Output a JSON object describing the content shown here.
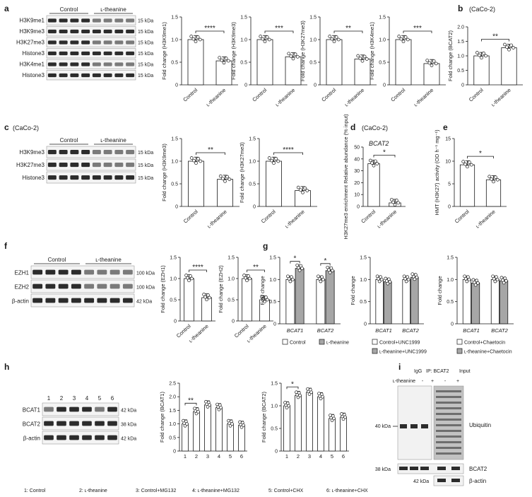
{
  "panel_labels": [
    "a",
    "b",
    "c",
    "d",
    "e",
    "f",
    "g",
    "h",
    "i"
  ],
  "a": {
    "blot": {
      "group_labels": [
        "Control",
        "ʟ-theanine"
      ],
      "rows": [
        "H3K9me1",
        "H3K9me3",
        "H3K27me3",
        "Histone3",
        "H3K4me1",
        "Histone3"
      ],
      "kda": [
        "15 kDa",
        "15 kDa",
        "15 kDa",
        "15 kDa",
        "15 kDa",
        "15 kDa"
      ]
    }
  },
  "b": {
    "cell": "(CaCo-2)"
  },
  "c": {
    "cell": "(CaCo-2)",
    "blot": {
      "group_labels": [
        "Control",
        "ʟ-theanine"
      ],
      "rows": [
        "H3K9me3",
        "H3K27me3",
        "Histone3"
      ],
      "kda": [
        "15 kDa",
        "15 kDa",
        "15 kDa"
      ]
    }
  },
  "d": {
    "cell": "(CaCo-2)"
  },
  "f": {
    "blot": {
      "group_labels": [
        "Control",
        "ʟ-theanine"
      ],
      "rows": [
        "EZH1",
        "EZH2",
        "β-actin"
      ],
      "kda": [
        "100 kDa",
        "100 kDa",
        "42 kDa"
      ]
    }
  },
  "h": {
    "blot": {
      "lane_numbers": [
        "1",
        "2",
        "3",
        "4",
        "5",
        "6"
      ],
      "rows": [
        "BCAT1",
        "BCAT2",
        "β-actin"
      ],
      "kda": [
        "42 kDa",
        "38 kDa",
        "42 kDa"
      ]
    },
    "footnote": [
      "1: Control",
      "2: ʟ-theanine",
      "3: Control+MG132",
      "4: ʟ-theanine+MG132",
      "5: Control+CHX",
      "6: ʟ-theanine+CHX"
    ]
  },
  "i": {
    "header_left": "IgG",
    "header_ip": "IP: BCAT2",
    "header_input": "Input",
    "row_label": "ʟ-theanine",
    "signs": [
      "-",
      "+",
      "-",
      "+"
    ],
    "kda_40": "40 kDa",
    "kda_38": "38 kDa",
    "kda_42": "42 kDa",
    "labels": [
      "Ubiquitin",
      "BCAT2",
      "β-actin"
    ]
  },
  "g_legends": [
    [
      {
        "label": "Control",
        "color": "#ffffff"
      },
      {
        "label": "ʟ-theanine",
        "color": "#a6a6a6"
      }
    ],
    [
      {
        "label": "Control+UNC1999",
        "color": "#ffffff"
      },
      {
        "label": "ʟ-theanine+UNC1999",
        "color": "#a6a6a6"
      }
    ],
    [
      {
        "label": "Control+Chaetocin",
        "color": "#ffffff"
      },
      {
        "label": "ʟ-theanine+Chaetocin",
        "color": "#a6a6a6"
      }
    ]
  ],
  "colors": {
    "bar_light": "#ffffff",
    "bar_dark": "#a6a6a6",
    "ink": "#1a1a1a",
    "band": "#2c2c2c"
  },
  "chart_data": [
    {
      "id": "a1",
      "type": "bar",
      "categories": [
        "Control",
        "ʟ-theanine"
      ],
      "values": [
        1.0,
        0.53
      ],
      "ylabel": "Fold change (H3K9me1)",
      "ylim": [
        0,
        1.5
      ],
      "yticks": [
        "0",
        "0.5",
        "1.0",
        "1.5"
      ],
      "sig": [
        "****"
      ]
    },
    {
      "id": "a2",
      "type": "bar",
      "categories": [
        "Control",
        "ʟ-theanine"
      ],
      "values": [
        1.0,
        0.62
      ],
      "ylabel": "Fold change (H3K9me3)",
      "ylim": [
        0,
        1.5
      ],
      "yticks": [
        "0",
        "0.5",
        "1.0",
        "1.5"
      ],
      "sig": [
        "***"
      ]
    },
    {
      "id": "a3",
      "type": "bar",
      "categories": [
        "Control",
        "ʟ-theanine"
      ],
      "values": [
        1.0,
        0.57
      ],
      "ylabel": "Fold change (H3K27me3)",
      "ylim": [
        0,
        1.5
      ],
      "yticks": [
        "0",
        "0.5",
        "1.0",
        "1.5"
      ],
      "sig": [
        "**"
      ]
    },
    {
      "id": "a4",
      "type": "bar",
      "categories": [
        "Control",
        "ʟ-theanine"
      ],
      "values": [
        1.0,
        0.47
      ],
      "ylabel": "Fold change (H3K4me1)",
      "ylim": [
        0,
        1.5
      ],
      "yticks": [
        "0",
        "0.5",
        "1.0",
        "1.5"
      ],
      "sig": [
        "***"
      ]
    },
    {
      "id": "b",
      "type": "bar",
      "categories": [
        "Control",
        "ʟ-theanine"
      ],
      "values": [
        1.0,
        1.28
      ],
      "ylabel": "Fold change (BCAT2)",
      "ylim": [
        0,
        2.0
      ],
      "yticks": [
        "0",
        "0.5",
        "1.0",
        "1.5",
        "2.0"
      ],
      "sig": [
        "**"
      ]
    },
    {
      "id": "c1",
      "type": "bar",
      "categories": [
        "Control",
        "ʟ-theanine"
      ],
      "values": [
        1.0,
        0.6
      ],
      "ylabel": "Fold change (H3K9me3)",
      "ylim": [
        0,
        1.5
      ],
      "yticks": [
        "0",
        "0.5",
        "1.0",
        "1.5"
      ],
      "sig": [
        "**"
      ]
    },
    {
      "id": "c2",
      "type": "bar",
      "categories": [
        "Control",
        "ʟ-theanine"
      ],
      "values": [
        1.0,
        0.35
      ],
      "ylabel": "Fold change (H3K27me3)",
      "ylim": [
        0,
        1.5
      ],
      "yticks": [
        "0",
        "0.5",
        "1.0",
        "1.5"
      ],
      "sig": [
        "****"
      ]
    },
    {
      "id": "d",
      "type": "bar",
      "title": "BCAT2",
      "categories": [
        "Control",
        "ʟ-theanine"
      ],
      "values": [
        36,
        3
      ],
      "ylabel": "H3K27me3 enrichment Relative abundance (% input)",
      "ylim": [
        0,
        50
      ],
      "yticks": [
        "0",
        "10",
        "20",
        "30",
        "40",
        "50"
      ],
      "sig": [
        "*"
      ]
    },
    {
      "id": "e",
      "type": "bar",
      "categories": [
        "Control",
        "ʟ-theanine"
      ],
      "values": [
        9.2,
        5.9
      ],
      "ylabel": "HMT (H3K27) activity (OD h⁻¹ mg⁻¹)",
      "ylim": [
        0,
        15
      ],
      "yticks": [
        "0",
        "5",
        "10",
        "15"
      ],
      "sig": [
        "*"
      ]
    },
    {
      "id": "f1",
      "type": "bar",
      "categories": [
        "Control",
        "ʟ-theanine"
      ],
      "values": [
        1.0,
        0.55
      ],
      "ylabel": "Fold change (EZH1)",
      "ylim": [
        0,
        1.5
      ],
      "yticks": [
        "0",
        "0.5",
        "1.0",
        "1.5"
      ],
      "sig": [
        "****"
      ]
    },
    {
      "id": "f2",
      "type": "bar",
      "categories": [
        "Control",
        "ʟ-theanine"
      ],
      "values": [
        1.0,
        0.5
      ],
      "ylabel": "Fold change (EZH2)",
      "ylim": [
        0,
        1.5
      ],
      "yticks": [
        "0",
        "0.5",
        "1.0",
        "1.5"
      ],
      "sig": [
        "**"
      ]
    },
    {
      "id": "g1",
      "type": "bar",
      "categories": [
        "BCAT1",
        "BCAT2"
      ],
      "series": [
        {
          "values": [
            1.0,
            1.0
          ]
        },
        {
          "values": [
            1.25,
            1.2
          ]
        }
      ],
      "ylabel": "Fold change",
      "ylim": [
        0,
        1.5
      ],
      "yticks": [
        "0",
        "0.5",
        "1.0",
        "1.5"
      ],
      "sig": [
        "*",
        "*"
      ]
    },
    {
      "id": "g2",
      "type": "bar",
      "categories": [
        "BCAT1",
        "BCAT2"
      ],
      "series": [
        {
          "values": [
            1.0,
            1.0
          ]
        },
        {
          "values": [
            0.95,
            1.05
          ]
        }
      ],
      "ylabel": "Fold change",
      "ylim": [
        0,
        1.5
      ],
      "yticks": [
        "0",
        "0.5",
        "1.0",
        "1.5"
      ],
      "sig": []
    },
    {
      "id": "g3",
      "type": "bar",
      "categories": [
        "BCAT1",
        "BCAT2"
      ],
      "series": [
        {
          "values": [
            1.0,
            1.0
          ]
        },
        {
          "values": [
            0.92,
            0.97
          ]
        }
      ],
      "ylabel": "Fold change",
      "ylim": [
        0,
        1.5
      ],
      "yticks": [
        "0",
        "0.5",
        "1.0",
        "1.5"
      ],
      "sig": []
    },
    {
      "id": "h1",
      "type": "bar",
      "categories": [
        "1",
        "2",
        "3",
        "4",
        "5",
        "6"
      ],
      "values": [
        1.0,
        1.45,
        1.7,
        1.6,
        1.0,
        0.95
      ],
      "ylabel": "Fold change (BCAT1)",
      "ylim": [
        0,
        2.5
      ],
      "yticks": [
        "0",
        "0.5",
        "1.0",
        "1.5",
        "2.0",
        "2.5"
      ],
      "sig": [
        "**"
      ]
    },
    {
      "id": "h2",
      "type": "bar",
      "categories": [
        "1",
        "2",
        "3",
        "4",
        "5",
        "6"
      ],
      "values": [
        1.0,
        1.23,
        1.3,
        1.2,
        0.72,
        0.75
      ],
      "ylabel": "Fold change (BCAT2)",
      "ylim": [
        0,
        1.5
      ],
      "yticks": [
        "0",
        "0.5",
        "1.0",
        "1.5"
      ],
      "sig": [
        "*"
      ]
    }
  ]
}
